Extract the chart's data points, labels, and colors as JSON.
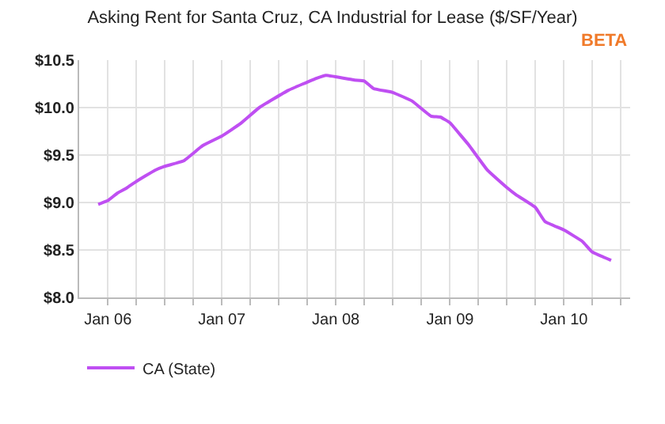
{
  "chart_data": {
    "type": "line",
    "title": "Asking Rent for Santa Cruz, CA Industrial for Lease ($/SF/Year)",
    "annotations": [
      "BETA"
    ],
    "x": [
      "2005-12",
      "2006-01",
      "2006-02",
      "2006-03",
      "2006-04",
      "2006-06",
      "2006-07",
      "2006-09",
      "2006-11",
      "2007-01",
      "2007-03",
      "2007-05",
      "2007-08",
      "2007-11",
      "2007-12",
      "2008-03",
      "2008-04",
      "2008-05",
      "2008-07",
      "2008-09",
      "2008-11",
      "2008-12",
      "2009-01",
      "2009-02",
      "2009-03",
      "2009-05",
      "2009-07",
      "2009-08",
      "2009-10",
      "2009-11",
      "2010-01",
      "2010-03",
      "2010-04",
      "2010-06"
    ],
    "series": [
      {
        "name": "CA (State)",
        "color": "#bf4ff2",
        "values": [
          8.98,
          9.02,
          9.1,
          9.15,
          9.22,
          9.34,
          9.38,
          9.44,
          9.6,
          9.7,
          9.83,
          10.0,
          10.18,
          10.31,
          10.34,
          10.29,
          10.28,
          10.2,
          10.16,
          10.07,
          9.91,
          9.9,
          9.84,
          9.72,
          9.61,
          9.34,
          9.16,
          9.08,
          8.95,
          8.8,
          8.71,
          8.59,
          8.48,
          8.39
        ]
      }
    ],
    "xlim": [
      "2005-10",
      "2010-08"
    ],
    "xticks": [
      {
        "value": "2006-01",
        "label": "Jan 06"
      },
      {
        "value": "2006-04",
        "label": null
      },
      {
        "value": "2006-07",
        "label": null
      },
      {
        "value": "2006-10",
        "label": null
      },
      {
        "value": "2007-01",
        "label": "Jan 07"
      },
      {
        "value": "2007-04",
        "label": null
      },
      {
        "value": "2007-07",
        "label": null
      },
      {
        "value": "2007-10",
        "label": null
      },
      {
        "value": "2008-01",
        "label": "Jan 08"
      },
      {
        "value": "2008-04",
        "label": null
      },
      {
        "value": "2008-07",
        "label": null
      },
      {
        "value": "2008-10",
        "label": null
      },
      {
        "value": "2009-01",
        "label": "Jan 09"
      },
      {
        "value": "2009-04",
        "label": null
      },
      {
        "value": "2009-07",
        "label": null
      },
      {
        "value": "2009-10",
        "label": null
      },
      {
        "value": "2010-01",
        "label": "Jan 10"
      },
      {
        "value": "2010-04",
        "label": null
      },
      {
        "value": "2010-07",
        "label": null
      }
    ],
    "ylim": [
      8.0,
      10.5
    ],
    "yticks": [
      {
        "value": 8.0,
        "label": "$8.0"
      },
      {
        "value": 8.5,
        "label": "$8.5"
      },
      {
        "value": 9.0,
        "label": "$9.0"
      },
      {
        "value": 9.5,
        "label": "$9.5"
      },
      {
        "value": 10.0,
        "label": "$10.0"
      },
      {
        "value": 10.5,
        "label": "$10.5"
      }
    ],
    "grid": true,
    "legend": "bottom left",
    "marker": "none",
    "line_style": "solid"
  }
}
